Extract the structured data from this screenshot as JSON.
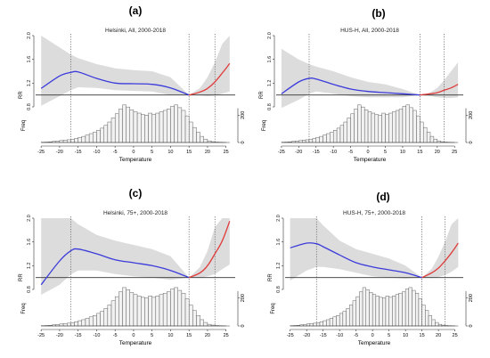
{
  "chart_data": [
    {
      "panel_label": "(a)",
      "title": "Helsinki, All, 2000-2018",
      "type": "line",
      "ylabel_top": "RR",
      "ylabel_bottom": "Freq",
      "xlabel": "Temperature",
      "xlim": [
        -26,
        27
      ],
      "ylim": [
        0.8,
        2.0
      ],
      "x_ticks": [
        -25,
        -20,
        -15,
        -10,
        -5,
        0,
        5,
        10,
        15,
        20,
        25
      ],
      "y_ticks": [
        "0.8",
        "1.2",
        "1.6",
        "2.0"
      ],
      "freq_ticks": [
        "0",
        "200"
      ],
      "reference_lines": [
        -17,
        15,
        22
      ],
      "rr_cold": {
        "x": [
          -25,
          -20,
          -17,
          -15,
          -10,
          -5,
          0,
          5,
          10,
          15
        ],
        "y": [
          1.11,
          1.32,
          1.38,
          1.39,
          1.28,
          1.2,
          1.19,
          1.18,
          1.12,
          1.0
        ]
      },
      "rr_hot": {
        "x": [
          15,
          18,
          20,
          22,
          24,
          26
        ],
        "y": [
          1.0,
          1.05,
          1.11,
          1.22,
          1.37,
          1.53
        ]
      },
      "ci_upper": [
        2.0,
        1.8,
        1.68,
        1.62,
        1.52,
        1.45,
        1.42,
        1.4,
        1.3,
        1.0,
        1.12,
        1.3,
        1.55,
        1.86,
        2.08
      ],
      "ci_lower": [
        0.82,
        0.98,
        1.08,
        1.13,
        1.12,
        1.08,
        1.07,
        1.06,
        1.0,
        1.0,
        0.99,
        0.98,
        0.99,
        1.02,
        1.06
      ],
      "histogram": {
        "bin_start": -25,
        "bin_width": 1,
        "counts": [
          2,
          3,
          5,
          8,
          10,
          14,
          18,
          20,
          22,
          30,
          38,
          45,
          55,
          65,
          75,
          90,
          105,
          125,
          150,
          180,
          210,
          245,
          275,
          260,
          240,
          225,
          215,
          205,
          200,
          215,
          205,
          215,
          225,
          235,
          245,
          265,
          275,
          255,
          235,
          195,
          150,
          110,
          75,
          45,
          25,
          12,
          6,
          3,
          2,
          1
        ]
      }
    },
    {
      "panel_label": "(b)",
      "title": "HUS-H, All, 2000-2018",
      "type": "line",
      "ylabel_top": "RR",
      "ylabel_bottom": "Freq",
      "xlabel": "Temperature",
      "xlim": [
        -26,
        27
      ],
      "ylim": [
        0.8,
        2.0
      ],
      "x_ticks": [
        -25,
        -20,
        -15,
        -10,
        -5,
        0,
        5,
        10,
        15,
        20,
        25
      ],
      "y_ticks": [
        "0.8",
        "1.2",
        "1.6",
        "2.0"
      ],
      "freq_ticks": [
        "0",
        "200"
      ],
      "reference_lines": [
        -17,
        15,
        22
      ],
      "rr_cold": {
        "x": [
          -25,
          -20,
          -17,
          -15,
          -10,
          -5,
          0,
          5,
          10,
          15
        ],
        "y": [
          1.02,
          1.22,
          1.28,
          1.27,
          1.18,
          1.1,
          1.06,
          1.04,
          1.02,
          1.0
        ]
      },
      "rr_hot": {
        "x": [
          15,
          18,
          20,
          22,
          24,
          26
        ],
        "y": [
          1.0,
          1.02,
          1.04,
          1.08,
          1.12,
          1.18
        ]
      },
      "ci_upper": [
        1.78,
        1.6,
        1.52,
        1.48,
        1.4,
        1.3,
        1.22,
        1.18,
        1.1,
        1.0,
        1.04,
        1.12,
        1.25,
        1.4,
        1.55
      ],
      "ci_lower": [
        0.78,
        0.92,
        1.02,
        1.06,
        1.02,
        0.98,
        0.96,
        0.96,
        0.96,
        1.0,
        0.98,
        0.96,
        0.95,
        0.95,
        0.96
      ],
      "histogram": {
        "bin_start": -25,
        "bin_width": 1,
        "counts": [
          2,
          3,
          5,
          8,
          10,
          14,
          18,
          20,
          22,
          30,
          38,
          45,
          55,
          65,
          75,
          90,
          105,
          125,
          150,
          180,
          210,
          245,
          275,
          260,
          240,
          225,
          215,
          205,
          200,
          215,
          205,
          215,
          225,
          235,
          245,
          265,
          275,
          255,
          235,
          195,
          150,
          110,
          75,
          45,
          25,
          12,
          6,
          3,
          2,
          1
        ]
      }
    },
    {
      "panel_label": "(c)",
      "title": "Helsinki, 75+, 2000-2018",
      "type": "line",
      "ylabel_top": "RR",
      "ylabel_bottom": "Freq",
      "xlabel": "Temperature",
      "xlim": [
        -26,
        27
      ],
      "ylim": [
        0.8,
        2.0
      ],
      "x_ticks": [
        -25,
        -20,
        -15,
        -10,
        -5,
        0,
        5,
        10,
        15,
        20,
        25
      ],
      "y_ticks": [
        "0.8",
        "1.2",
        "1.6",
        "2.0"
      ],
      "freq_ticks": [
        "0",
        "200"
      ],
      "reference_lines": [
        -17,
        15,
        22
      ],
      "rr_cold": {
        "x": [
          -25,
          -20,
          -17,
          -15,
          -10,
          -5,
          0,
          5,
          10,
          15
        ],
        "y": [
          0.88,
          1.28,
          1.45,
          1.48,
          1.4,
          1.3,
          1.25,
          1.2,
          1.12,
          1.0
        ]
      },
      "rr_hot": {
        "x": [
          15,
          18,
          20,
          22,
          24,
          26
        ],
        "y": [
          1.0,
          1.08,
          1.2,
          1.4,
          1.62,
          1.95
        ]
      },
      "ci_upper": [
        2.0,
        2.0,
        2.0,
        1.9,
        1.72,
        1.62,
        1.55,
        1.48,
        1.36,
        1.0,
        1.18,
        1.45,
        1.85,
        2.0,
        2.0
      ],
      "ci_lower": [
        0.62,
        0.88,
        1.05,
        1.12,
        1.12,
        1.06,
        1.02,
        1.0,
        0.96,
        1.0,
        0.99,
        1.02,
        1.06,
        1.14,
        1.22
      ],
      "histogram": {
        "bin_start": -25,
        "bin_width": 1,
        "counts": [
          2,
          3,
          5,
          8,
          10,
          14,
          18,
          20,
          22,
          30,
          38,
          45,
          55,
          65,
          75,
          90,
          105,
          125,
          150,
          180,
          210,
          245,
          275,
          260,
          240,
          225,
          215,
          205,
          200,
          215,
          205,
          215,
          225,
          235,
          245,
          265,
          275,
          255,
          235,
          195,
          150,
          110,
          75,
          45,
          25,
          12,
          6,
          3,
          2,
          1
        ]
      }
    },
    {
      "panel_label": "(d)",
      "title": "HUS-H, 75+, 2000-2018",
      "type": "line",
      "ylabel_top": "RR",
      "ylabel_bottom": "Freq",
      "xlabel": "Temperature",
      "xlim": [
        -26,
        27
      ],
      "ylim": [
        0.8,
        2.0
      ],
      "x_ticks": [
        -25,
        -20,
        -15,
        -10,
        -5,
        0,
        5,
        10,
        15,
        20,
        25
      ],
      "y_ticks": [
        "0.8",
        "1.2",
        "1.6",
        "2.0"
      ],
      "freq_ticks": [
        "0",
        "200"
      ],
      "reference_lines": [
        -17,
        15,
        22
      ],
      "rr_cold": {
        "x": [
          -25,
          -20,
          -17,
          -15,
          -10,
          -5,
          0,
          5,
          10,
          15
        ],
        "y": [
          1.5,
          1.58,
          1.57,
          1.52,
          1.38,
          1.25,
          1.18,
          1.13,
          1.08,
          1.0
        ]
      },
      "rr_hot": {
        "x": [
          15,
          18,
          20,
          22,
          24,
          26
        ],
        "y": [
          1.0,
          1.08,
          1.16,
          1.28,
          1.42,
          1.58
        ]
      },
      "ci_upper": [
        2.0,
        2.0,
        2.0,
        1.88,
        1.62,
        1.48,
        1.4,
        1.32,
        1.2,
        1.0,
        1.15,
        1.35,
        1.6,
        1.9,
        2.0
      ],
      "ci_lower": [
        0.95,
        1.12,
        1.18,
        1.18,
        1.14,
        1.08,
        1.02,
        1.0,
        0.98,
        1.0,
        0.99,
        1.01,
        1.04,
        1.1,
        1.18
      ],
      "histogram": {
        "bin_start": -25,
        "bin_width": 1,
        "counts": [
          2,
          3,
          5,
          8,
          10,
          14,
          18,
          20,
          22,
          30,
          38,
          45,
          55,
          65,
          75,
          90,
          105,
          125,
          150,
          180,
          210,
          245,
          275,
          260,
          240,
          225,
          215,
          205,
          200,
          215,
          205,
          215,
          225,
          235,
          245,
          265,
          275,
          255,
          235,
          195,
          150,
          110,
          75,
          45,
          25,
          12,
          6,
          3,
          2,
          1
        ]
      }
    }
  ],
  "colors": {
    "cold_curve": "#3b3bdb",
    "hot_curve": "#e03c3c",
    "ci_band": "#dcdcdc",
    "reference_line": "#555555",
    "bar_fill": "#f2f2f2",
    "bar_stroke": "#444444"
  }
}
